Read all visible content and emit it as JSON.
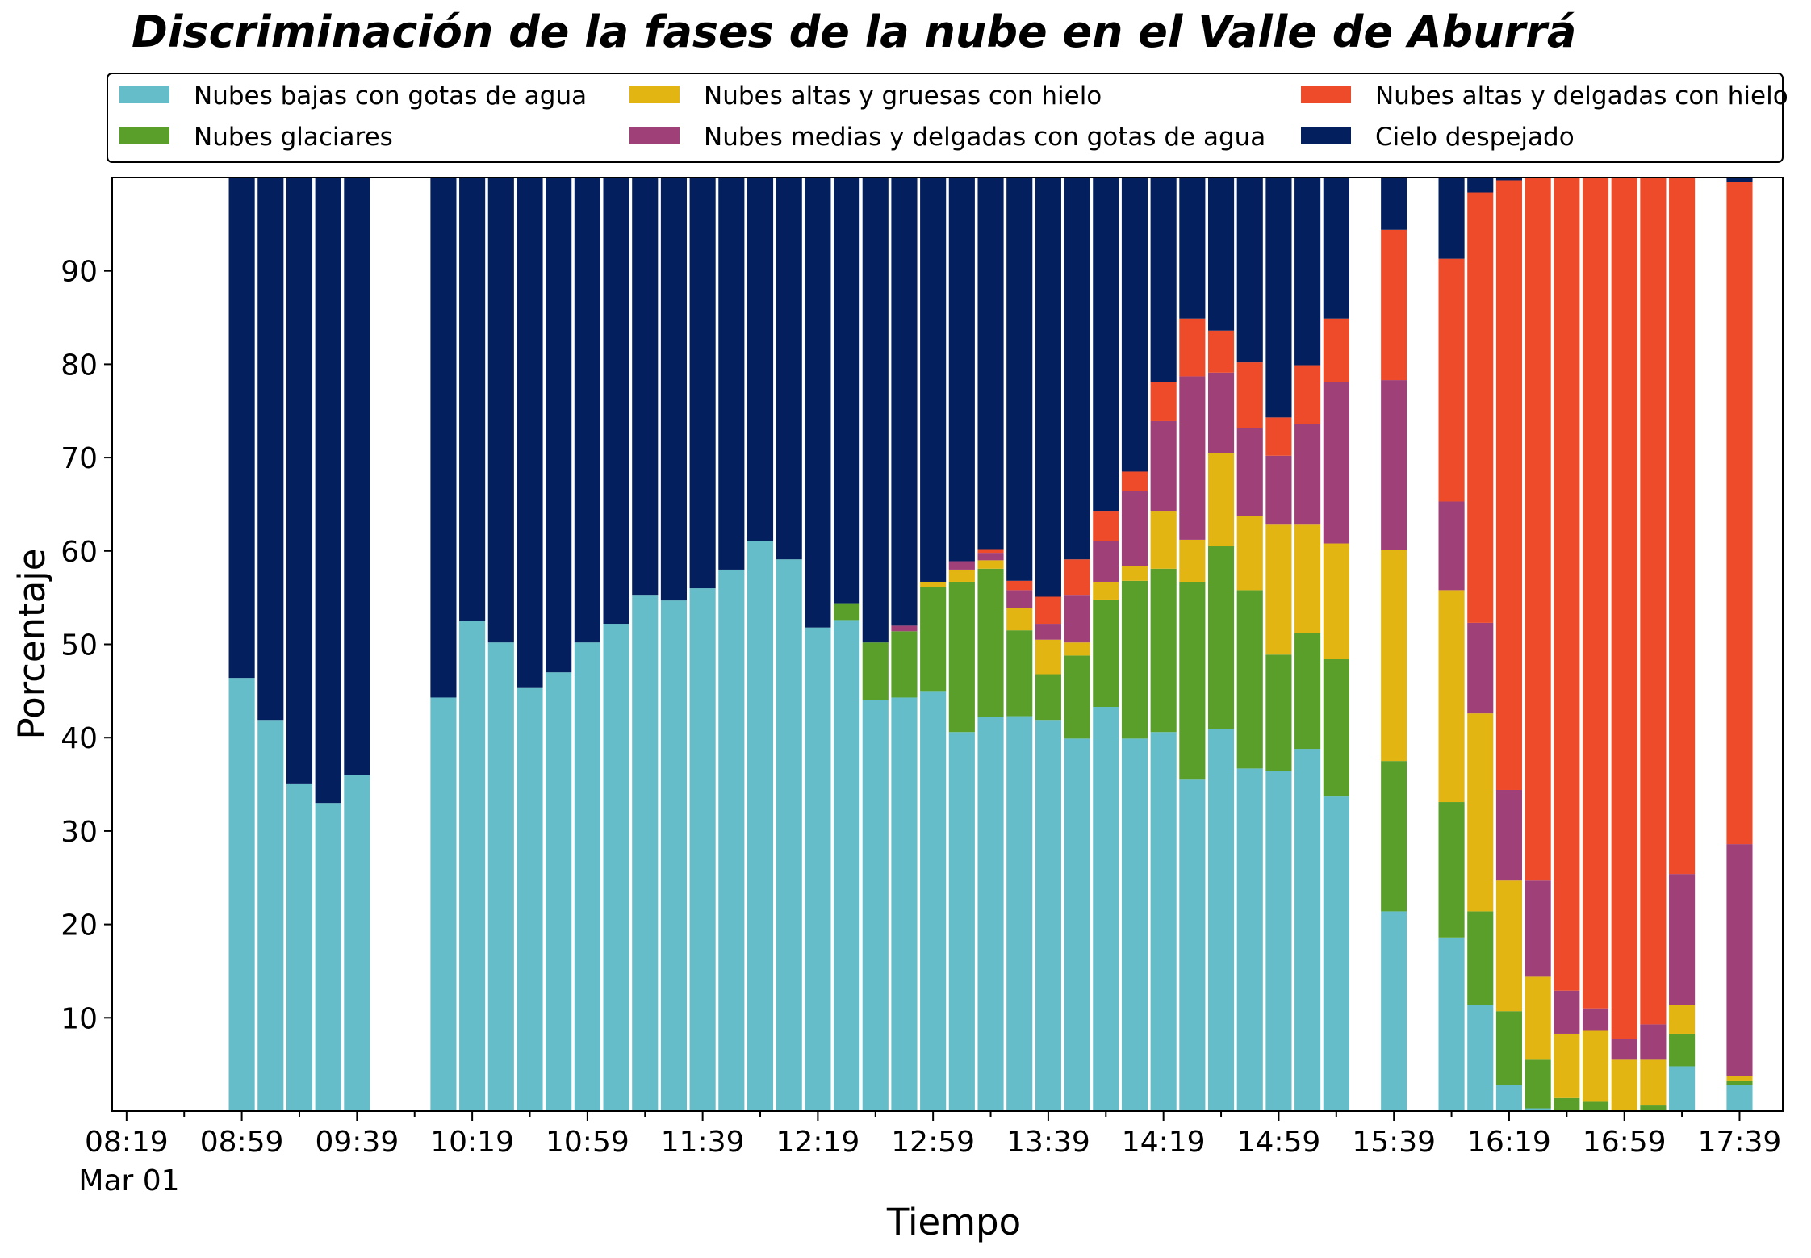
{
  "chart_data": {
    "type": "bar",
    "stacked": true,
    "title": "Discriminación de la fases de la nube en el Valle de Aburrá",
    "xlabel": "Tiempo",
    "ylabel": "Porcentaje",
    "ylim": [
      0,
      100
    ],
    "yticks": [
      10,
      20,
      30,
      40,
      50,
      60,
      70,
      80,
      90
    ],
    "xlim_minutes_after_08_19": [
      -5,
      575
    ],
    "x_tick_labels": [
      "08:19",
      "08:59",
      "09:39",
      "10:19",
      "10:59",
      "11:39",
      "12:19",
      "12:59",
      "13:39",
      "14:19",
      "14:59",
      "15:39",
      "16:19",
      "16:59",
      "17:39"
    ],
    "x_date_label": "Mar 01",
    "legend_position": "top, above plot, 3 columns",
    "grid": false,
    "series": [
      {
        "name": "Nubes bajas con gotas de agua",
        "color": "#64BDC9"
      },
      {
        "name": "Nubes glaciares",
        "color": "#5A9F2A"
      },
      {
        "name": "Nubes altas y gruesas con hielo",
        "color": "#E3B512"
      },
      {
        "name": "Nubes medias y delgadas con gotas de agua",
        "color": "#A04079"
      },
      {
        "name": "Nubes altas y delgadas con hielo",
        "color": "#EE4B2A"
      },
      {
        "name": "Cielo despejado",
        "color": "#031F5E"
      }
    ],
    "bars": [
      {
        "time": "08:59",
        "values": [
          46.4,
          0,
          0,
          0,
          0,
          53.6
        ]
      },
      {
        "time": "09:09",
        "values": [
          41.9,
          0,
          0,
          0,
          0,
          58.1
        ]
      },
      {
        "time": "09:19",
        "values": [
          35.1,
          0,
          0,
          0,
          0,
          64.9
        ]
      },
      {
        "time": "09:29",
        "values": [
          33.0,
          0,
          0,
          0,
          0,
          67.0
        ]
      },
      {
        "time": "09:39",
        "values": [
          36.0,
          0,
          0,
          0,
          0,
          64.0
        ]
      },
      {
        "time": "10:09",
        "values": [
          44.3,
          0,
          0,
          0,
          0,
          55.7
        ]
      },
      {
        "time": "10:19",
        "values": [
          52.5,
          0,
          0,
          0,
          0,
          47.5
        ]
      },
      {
        "time": "10:29",
        "values": [
          50.2,
          0,
          0,
          0,
          0,
          49.8
        ]
      },
      {
        "time": "10:39",
        "values": [
          45.4,
          0,
          0,
          0,
          0,
          54.6
        ]
      },
      {
        "time": "10:49",
        "values": [
          47.0,
          0,
          0,
          0,
          0,
          53.0
        ]
      },
      {
        "time": "10:59",
        "values": [
          50.2,
          0,
          0,
          0,
          0,
          49.8
        ]
      },
      {
        "time": "11:09",
        "values": [
          52.2,
          0,
          0,
          0,
          0,
          47.8
        ]
      },
      {
        "time": "11:19",
        "values": [
          55.3,
          0,
          0,
          0,
          0,
          44.7
        ]
      },
      {
        "time": "11:29",
        "values": [
          54.7,
          0,
          0,
          0,
          0,
          45.3
        ]
      },
      {
        "time": "11:39",
        "values": [
          56.0,
          0,
          0,
          0,
          0,
          44.0
        ]
      },
      {
        "time": "11:49",
        "values": [
          58.0,
          0,
          0,
          0,
          0,
          42.0
        ]
      },
      {
        "time": "11:59",
        "values": [
          61.1,
          0,
          0,
          0,
          0,
          38.9
        ]
      },
      {
        "time": "12:09",
        "values": [
          59.1,
          0,
          0,
          0,
          0,
          40.9
        ]
      },
      {
        "time": "12:19",
        "values": [
          51.8,
          0,
          0,
          0,
          0,
          48.2
        ]
      },
      {
        "time": "12:29",
        "values": [
          52.6,
          1.8,
          0,
          0,
          0,
          45.6
        ]
      },
      {
        "time": "12:39",
        "values": [
          44.0,
          6.2,
          0,
          0,
          0,
          49.8
        ]
      },
      {
        "time": "12:49",
        "values": [
          44.3,
          7.1,
          0,
          0.6,
          0,
          48.0
        ]
      },
      {
        "time": "12:59",
        "values": [
          45.0,
          11.1,
          0.6,
          0,
          0,
          43.3
        ]
      },
      {
        "time": "13:09",
        "values": [
          40.6,
          16.1,
          1.3,
          0.9,
          0,
          41.1
        ]
      },
      {
        "time": "13:19",
        "values": [
          42.2,
          15.9,
          0.9,
          0.8,
          0.4,
          39.8
        ]
      },
      {
        "time": "13:29",
        "values": [
          42.3,
          9.2,
          2.4,
          1.9,
          1.0,
          43.2
        ]
      },
      {
        "time": "13:39",
        "values": [
          41.9,
          4.9,
          3.7,
          1.7,
          2.9,
          44.9
        ]
      },
      {
        "time": "13:49",
        "values": [
          39.9,
          8.9,
          1.4,
          5.1,
          3.8,
          40.9
        ]
      },
      {
        "time": "13:59",
        "values": [
          43.3,
          11.5,
          1.9,
          4.4,
          3.2,
          35.7
        ]
      },
      {
        "time": "14:09",
        "values": [
          39.9,
          16.9,
          1.6,
          8.0,
          2.1,
          31.5
        ]
      },
      {
        "time": "14:19",
        "values": [
          40.6,
          17.5,
          6.2,
          9.6,
          4.2,
          21.9
        ]
      },
      {
        "time": "14:29",
        "values": [
          35.5,
          21.2,
          4.5,
          17.5,
          6.2,
          15.1
        ]
      },
      {
        "time": "14:39",
        "values": [
          40.9,
          19.6,
          10.0,
          8.6,
          4.5,
          16.4
        ]
      },
      {
        "time": "14:49",
        "values": [
          36.7,
          19.1,
          7.9,
          9.5,
          7.0,
          19.8
        ]
      },
      {
        "time": "14:59",
        "values": [
          36.4,
          12.5,
          14.0,
          7.3,
          4.1,
          25.7
        ]
      },
      {
        "time": "15:09",
        "values": [
          38.8,
          12.4,
          11.7,
          10.7,
          6.3,
          20.1
        ]
      },
      {
        "time": "15:19",
        "values": [
          33.7,
          14.7,
          12.4,
          17.3,
          6.8,
          15.1
        ]
      },
      {
        "time": "15:39",
        "values": [
          21.4,
          16.1,
          22.6,
          18.2,
          16.1,
          5.6
        ]
      },
      {
        "time": "15:59",
        "values": [
          18.6,
          14.5,
          22.7,
          9.5,
          26.0,
          8.7
        ]
      },
      {
        "time": "16:09",
        "values": [
          11.4,
          10.0,
          21.2,
          9.7,
          46.1,
          1.6
        ]
      },
      {
        "time": "16:19",
        "values": [
          2.8,
          7.9,
          14.0,
          9.7,
          65.3,
          0.3
        ]
      },
      {
        "time": "16:29",
        "values": [
          0.3,
          5.2,
          8.9,
          10.3,
          75.3,
          0
        ]
      },
      {
        "time": "16:39",
        "values": [
          0,
          1.4,
          6.9,
          4.6,
          87.1,
          0
        ]
      },
      {
        "time": "16:49",
        "values": [
          0,
          1.0,
          7.6,
          2.4,
          89.0,
          0
        ]
      },
      {
        "time": "16:59",
        "values": [
          0,
          0,
          5.5,
          2.2,
          92.3,
          0
        ]
      },
      {
        "time": "17:09",
        "values": [
          0,
          0.6,
          4.9,
          3.8,
          90.7,
          0
        ]
      },
      {
        "time": "17:19",
        "values": [
          4.8,
          3.5,
          3.1,
          14.0,
          74.6,
          0
        ]
      },
      {
        "time": "17:39",
        "values": [
          2.8,
          0.4,
          0.6,
          24.8,
          70.9,
          0.5
        ]
      }
    ]
  }
}
